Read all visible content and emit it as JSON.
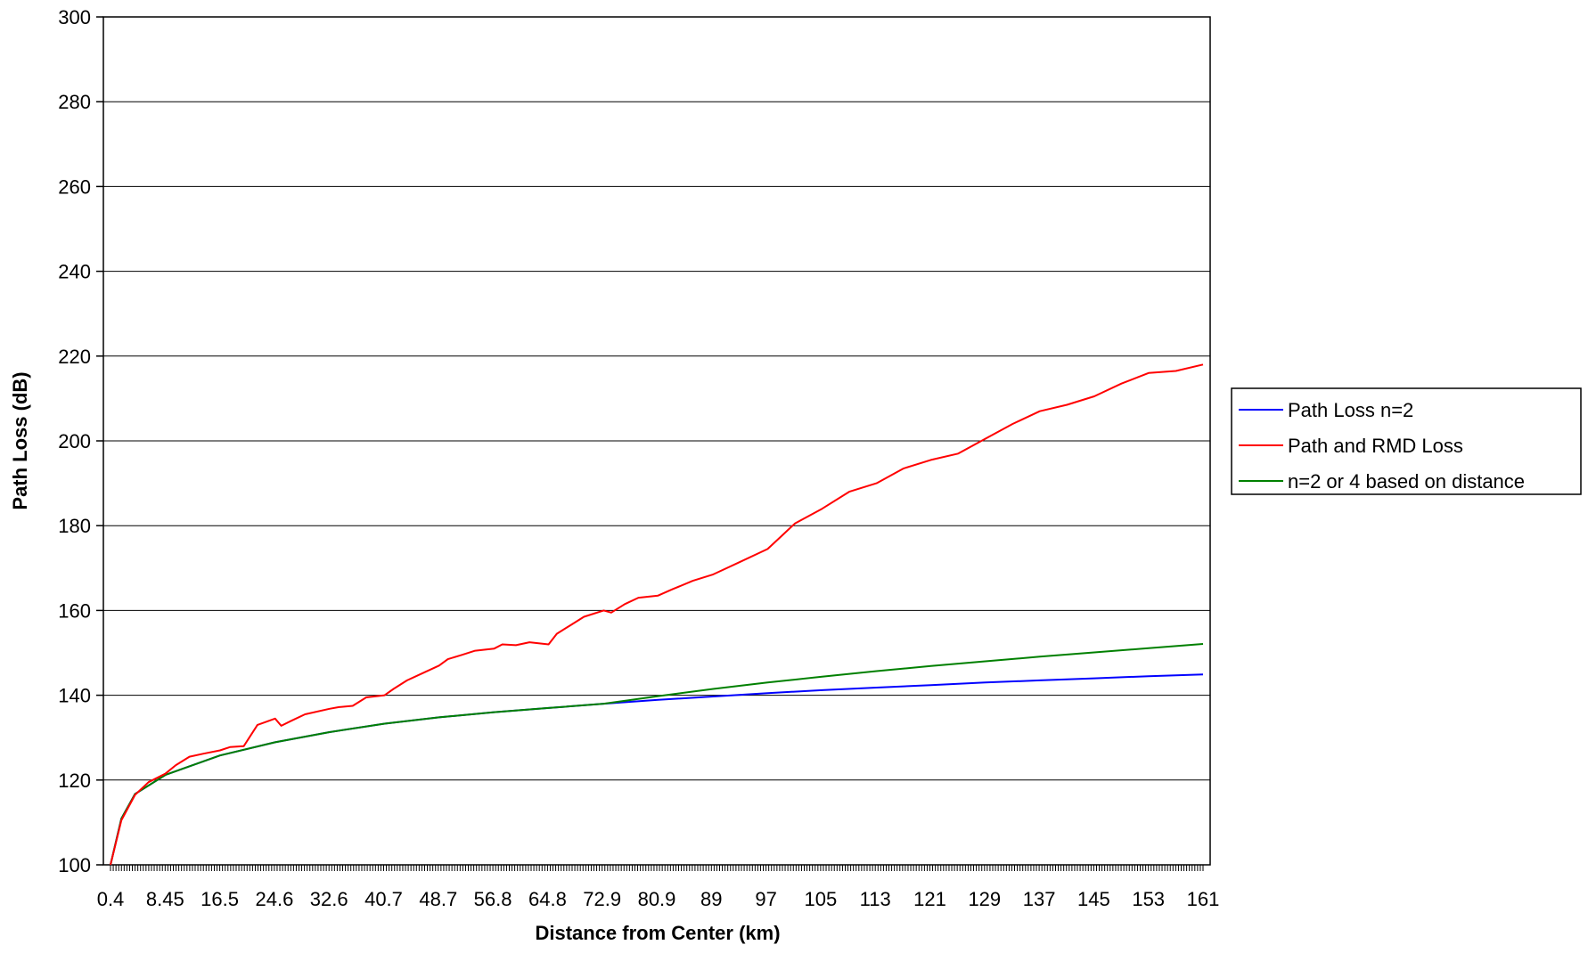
{
  "chart_data": {
    "type": "line",
    "title": "",
    "xlabel": "Distance from Center (km)",
    "ylabel": "Path Loss (dB)",
    "x_tick_labels": [
      "0.4",
      "8.45",
      "16.5",
      "24.6",
      "32.6",
      "40.7",
      "48.7",
      "56.8",
      "64.8",
      "72.9",
      "80.9",
      "89",
      "97",
      "105",
      "113",
      "121",
      "129",
      "137",
      "145",
      "153",
      "161"
    ],
    "xlim": [
      0.4,
      161
    ],
    "ylim": [
      100,
      300
    ],
    "y_ticks": [
      100,
      120,
      140,
      160,
      180,
      200,
      220,
      240,
      260,
      280,
      300
    ],
    "grid": "horizontal",
    "legend_position": "right",
    "series": [
      {
        "name": "Path Loss n=2",
        "color": "#0000ff",
        "x": [
          0.4,
          2,
          4,
          8.45,
          16.5,
          24.6,
          32.6,
          40.7,
          48.7,
          56.8,
          64.8,
          72.9,
          80.9,
          89,
          97,
          105,
          113,
          121,
          129,
          137,
          145,
          153,
          161
        ],
        "y": [
          100,
          110.9,
          116.7,
          121.2,
          125.8,
          128.9,
          131.3,
          133.3,
          134.8,
          136.0,
          137.0,
          138.0,
          138.9,
          139.7,
          140.5,
          141.2,
          141.8,
          142.4,
          143.0,
          143.5,
          144.0,
          144.5,
          144.9
        ]
      },
      {
        "name": "Path and RMD Loss",
        "color": "#ff0000",
        "x": [
          0.4,
          2,
          4,
          6,
          8.45,
          10,
          12,
          14,
          16.5,
          18,
          20,
          22,
          24.6,
          25.5,
          27,
          29,
          32.6,
          34,
          36,
          38,
          40.7,
          42,
          44,
          46,
          48.7,
          50,
          52,
          54,
          56.8,
          58,
          60,
          62,
          64.8,
          66,
          68,
          70,
          72.9,
          74,
          76,
          78,
          80.9,
          83,
          86,
          89,
          93,
          97,
          99,
          101,
          105,
          109,
          113,
          117,
          121,
          125,
          129,
          133,
          137,
          141,
          145,
          149,
          153,
          157,
          161
        ],
        "y": [
          100,
          110.5,
          116.5,
          119.5,
          121.5,
          123.5,
          125.5,
          126.2,
          127.0,
          127.8,
          128.0,
          133.0,
          134.5,
          132.8,
          134.0,
          135.5,
          136.8,
          137.2,
          137.5,
          139.5,
          140.0,
          141.5,
          143.5,
          145.0,
          147.0,
          148.5,
          149.5,
          150.5,
          151.0,
          152.0,
          151.8,
          152.5,
          152.0,
          154.5,
          156.5,
          158.5,
          160.0,
          159.5,
          161.5,
          163.0,
          163.5,
          165.0,
          167.0,
          168.5,
          171.5,
          174.5,
          177.5,
          180.5,
          184.0,
          188.0,
          190.0,
          193.5,
          195.5,
          197.0,
          200.5,
          204.0,
          207.0,
          208.5,
          210.5,
          213.5,
          216.0,
          216.5,
          218.0
        ]
      },
      {
        "name": "n=2 or 4 based on distance",
        "color": "#008000",
        "x": [
          0.4,
          2,
          4,
          8.45,
          16.5,
          24.6,
          32.6,
          40.7,
          48.7,
          56.8,
          64.8,
          72.9,
          80.9,
          89,
          97,
          105,
          113,
          121,
          129,
          137,
          145,
          153,
          161
        ],
        "y": [
          100,
          110.9,
          116.7,
          121.2,
          125.8,
          128.9,
          131.3,
          133.3,
          134.8,
          136.0,
          137.0,
          138.0,
          139.8,
          141.5,
          143.0,
          144.4,
          145.7,
          146.9,
          148.0,
          149.1,
          150.1,
          151.1,
          152.1
        ]
      }
    ]
  }
}
